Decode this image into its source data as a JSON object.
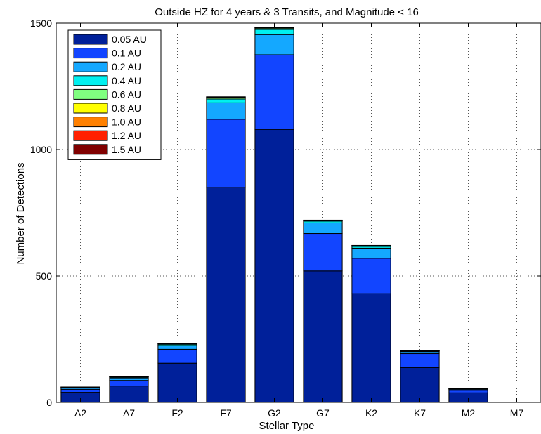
{
  "chart_data": {
    "type": "bar",
    "stacked": true,
    "title": "Outside HZ for 4 years & 3 Transits, and Magnitude < 16",
    "xlabel": "Stellar Type",
    "ylabel": "Number of Detections",
    "ylim": [
      0,
      1500
    ],
    "yticks": [
      0,
      500,
      1000,
      1500
    ],
    "grid": true,
    "legend_position": "top-left",
    "categories": [
      "A2",
      "A7",
      "F2",
      "F7",
      "G2",
      "G7",
      "K2",
      "K7",
      "M2",
      "M7"
    ],
    "series": [
      {
        "name": "0.05 AU",
        "color": "#00209a",
        "values": [
          40,
          65,
          155,
          850,
          1080,
          520,
          430,
          138,
          38,
          0
        ]
      },
      {
        "name": "0.1 AU",
        "color": "#1245ff",
        "values": [
          12,
          22,
          55,
          270,
          295,
          148,
          140,
          55,
          10,
          0
        ]
      },
      {
        "name": "0.2 AU",
        "color": "#14a8ff",
        "values": [
          5,
          10,
          15,
          65,
          80,
          42,
          40,
          8,
          4,
          0
        ]
      },
      {
        "name": "0.4 AU",
        "color": "#00f0f0",
        "values": [
          2,
          3,
          5,
          15,
          20,
          7,
          7,
          2,
          1,
          0
        ]
      },
      {
        "name": "0.6 AU",
        "color": "#80ff80",
        "values": [
          1,
          1,
          2,
          5,
          5,
          2,
          2,
          1,
          0.5,
          0
        ]
      },
      {
        "name": "0.8 AU",
        "color": "#ffff00",
        "values": [
          0.5,
          0.5,
          1,
          2,
          2,
          1,
          1,
          0.5,
          0.3,
          0
        ]
      },
      {
        "name": "1.0 AU",
        "color": "#ff8000",
        "values": [
          0.3,
          0.3,
          0.5,
          1,
          1,
          0.5,
          0.5,
          0.3,
          0.2,
          0
        ]
      },
      {
        "name": "1.2 AU",
        "color": "#ff2000",
        "values": [
          0.2,
          0.2,
          0.3,
          0.5,
          0.5,
          0.3,
          0.3,
          0.2,
          0.1,
          0
        ]
      },
      {
        "name": "1.5 AU",
        "color": "#800000",
        "values": [
          0.1,
          0.1,
          0.2,
          0.3,
          0.3,
          0.2,
          0.2,
          0.1,
          0.1,
          0
        ]
      }
    ]
  }
}
